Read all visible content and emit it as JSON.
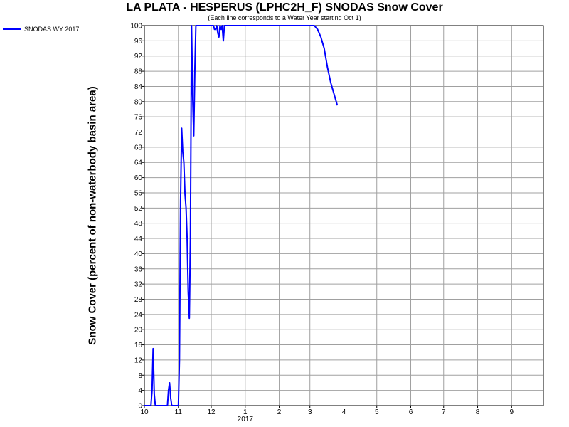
{
  "chart_data": {
    "type": "line",
    "title": "LA PLATA - HESPERUS (LPHC2H_F) SNODAS Snow Cover",
    "subtitle": "(Each line corresponds to a Water Year starting Oct 1)",
    "ylabel": "Snow Cover (percent of non-waterbody basin area)",
    "xlabel": "",
    "ylim": [
      0,
      100
    ],
    "yticks": [
      0,
      4,
      8,
      12,
      16,
      20,
      24,
      28,
      32,
      36,
      40,
      44,
      48,
      52,
      56,
      60,
      64,
      68,
      72,
      76,
      80,
      84,
      88,
      92,
      96,
      100
    ],
    "xlim": [
      10.0,
      9.97
    ],
    "xticks": [
      {
        "month": 10,
        "label": "10"
      },
      {
        "month": 11,
        "label": "11"
      },
      {
        "month": 12,
        "label": "12"
      },
      {
        "month": 1,
        "label": "1",
        "year_label": "2017"
      },
      {
        "month": 2,
        "label": "2"
      },
      {
        "month": 3,
        "label": "3"
      },
      {
        "month": 4,
        "label": "4"
      },
      {
        "month": 5,
        "label": "5"
      },
      {
        "month": 6,
        "label": "6"
      },
      {
        "month": 7,
        "label": "7"
      },
      {
        "month": 8,
        "label": "8"
      },
      {
        "month": 9,
        "label": "9"
      }
    ],
    "grid": true,
    "legend_position": "top-left",
    "series": [
      {
        "name": "SNODAS WY 2017",
        "color": "#0000ff",
        "points": [
          [
            "2016-10-01",
            0
          ],
          [
            "2016-10-07",
            0
          ],
          [
            "2016-10-08",
            4
          ],
          [
            "2016-10-09",
            15
          ],
          [
            "2016-10-10",
            3
          ],
          [
            "2016-10-11",
            0
          ],
          [
            "2016-10-22",
            0
          ],
          [
            "2016-10-23",
            4
          ],
          [
            "2016-10-24",
            6
          ],
          [
            "2016-10-25",
            2
          ],
          [
            "2016-10-26",
            0
          ],
          [
            "2016-10-31",
            0
          ],
          [
            "2016-11-01",
            0
          ],
          [
            "2016-11-02",
            12
          ],
          [
            "2016-11-03",
            54
          ],
          [
            "2016-11-04",
            73
          ],
          [
            "2016-11-05",
            67
          ],
          [
            "2016-11-06",
            64
          ],
          [
            "2016-11-07",
            56
          ],
          [
            "2016-11-08",
            52
          ],
          [
            "2016-11-09",
            44
          ],
          [
            "2016-11-10",
            30
          ],
          [
            "2016-11-11",
            23
          ],
          [
            "2016-11-12",
            44
          ],
          [
            "2016-11-13",
            100
          ],
          [
            "2016-11-14",
            82
          ],
          [
            "2016-11-15",
            71
          ],
          [
            "2016-11-16",
            88
          ],
          [
            "2016-11-17",
            100
          ],
          [
            "2016-11-18",
            100
          ],
          [
            "2016-11-25",
            100
          ],
          [
            "2016-11-30",
            100
          ],
          [
            "2016-12-01",
            100
          ],
          [
            "2016-12-03",
            100
          ],
          [
            "2016-12-04",
            99
          ],
          [
            "2016-12-05",
            99
          ],
          [
            "2016-12-06",
            100
          ],
          [
            "2016-12-07",
            98
          ],
          [
            "2016-12-08",
            97
          ],
          [
            "2016-12-09",
            100
          ],
          [
            "2016-12-10",
            99
          ],
          [
            "2016-12-11",
            100
          ],
          [
            "2016-12-12",
            96
          ],
          [
            "2016-12-13",
            100
          ],
          [
            "2016-12-20",
            100
          ],
          [
            "2017-01-01",
            100
          ],
          [
            "2017-02-01",
            100
          ],
          [
            "2017-03-01",
            100
          ],
          [
            "2017-03-05",
            100
          ],
          [
            "2017-03-08",
            99
          ],
          [
            "2017-03-11",
            97
          ],
          [
            "2017-03-14",
            94
          ],
          [
            "2017-03-17",
            89
          ],
          [
            "2017-03-20",
            85
          ],
          [
            "2017-03-22",
            83
          ],
          [
            "2017-03-24",
            81
          ],
          [
            "2017-03-26",
            79
          ]
        ]
      }
    ]
  }
}
